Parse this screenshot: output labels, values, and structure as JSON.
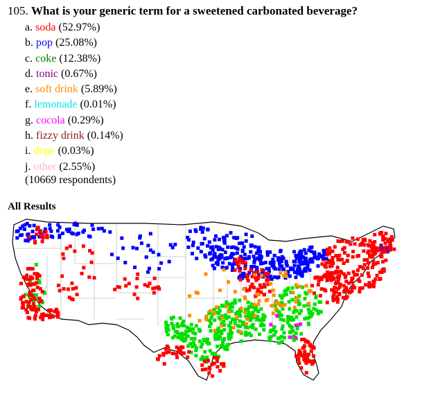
{
  "question": {
    "number": "105.",
    "text": "What is your generic term for a sweetened carbonated beverage?"
  },
  "answers": [
    {
      "letter": "a.",
      "term": "soda",
      "pct": "(52.97%)",
      "color": "#ff0000"
    },
    {
      "letter": "b.",
      "term": "pop",
      "pct": "(25.08%)",
      "color": "#0000ff"
    },
    {
      "letter": "c.",
      "term": "coke",
      "pct": "(12.38%)",
      "color": "#008000"
    },
    {
      "letter": "d.",
      "term": "tonic",
      "pct": "(0.67%)",
      "color": "#800080"
    },
    {
      "letter": "e.",
      "term": "soft drink",
      "pct": "(5.89%)",
      "color": "#ff8c00"
    },
    {
      "letter": "f.",
      "term": "lemonade",
      "pct": "(0.01%)",
      "color": "#00e5ee"
    },
    {
      "letter": "g.",
      "term": "cocola",
      "pct": "(0.29%)",
      "color": "#ff00ff"
    },
    {
      "letter": "h.",
      "term": "fizzy drink",
      "pct": "(0.14%)",
      "color": "#8b1a1a"
    },
    {
      "letter": "i.",
      "term": "dope",
      "pct": "(0.03%)",
      "color": "#ffff00"
    },
    {
      "letter": "j.",
      "term": "other",
      "pct": "(2.55%)",
      "color": "#ffb6c1"
    }
  ],
  "respondents": "(10669 respondents)",
  "results_heading": "All Results",
  "map": {
    "marker_colors": {
      "soda": "#ff0000",
      "pop": "#0000ff",
      "coke": "#00e000",
      "soft_drink": "#ff8c00",
      "tonic": "#800080",
      "cocola": "#ff00ff"
    },
    "background": "#ffffff",
    "outline_color": "#000000",
    "state_line_color": "#c0c0c0"
  }
}
